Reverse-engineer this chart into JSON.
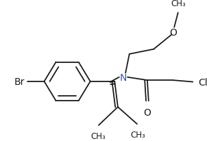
{
  "bg_color": "#ffffff",
  "line_color": "#1a1a1a",
  "label_color": "#1a1a1a",
  "figsize": [
    3.02,
    2.07
  ],
  "dpi": 100,
  "xlim": [
    0,
    302
  ],
  "ylim": [
    0,
    207
  ]
}
